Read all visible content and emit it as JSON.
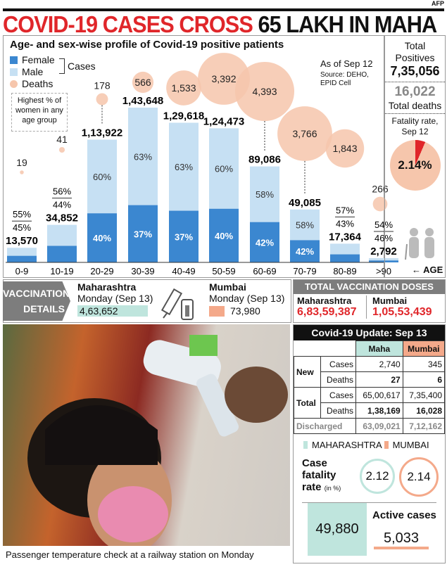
{
  "credit": "AFP",
  "headline": {
    "red": "COVID-19 CASES CROSS",
    "black": "65 LAKH IN MAHA"
  },
  "legend": {
    "female": "Female",
    "male": "Male",
    "deaths": "Deaths",
    "cases": "Cases"
  },
  "note": "Highest % of women in any age group",
  "as_of": "As of Sep 12",
  "source": "Source: DEHO, EPID Cell",
  "age_label": "AGE",
  "chart_data": {
    "type": "bar",
    "title": "Age- and sex-wise profile of Covid-19 positive patients",
    "categories": [
      "0-9",
      "10-19",
      "20-29",
      "30-39",
      "40-49",
      "50-59",
      "60-69",
      "70-79",
      "80-89",
      ">90"
    ],
    "totals": [
      13570,
      34852,
      113922,
      143648,
      129618,
      124473,
      89086,
      49085,
      17364,
      2792
    ],
    "total_labels": [
      "13,570",
      "34,852",
      "1,13,922",
      "1,43,648",
      "1,29,618",
      "1,24,473",
      "89,086",
      "49,085",
      "17,364",
      "2,792"
    ],
    "series": [
      {
        "name": "Female",
        "unit": "%",
        "values": [
          45,
          44,
          40,
          37,
          37,
          40,
          42,
          42,
          43,
          46
        ]
      },
      {
        "name": "Male",
        "unit": "%",
        "values": [
          55,
          56,
          60,
          63,
          63,
          60,
          58,
          58,
          57,
          54
        ]
      }
    ],
    "deaths": [
      19,
      41,
      178,
      566,
      1533,
      3392,
      4393,
      3766,
      1843,
      266
    ],
    "death_labels": [
      "19",
      "41",
      "178",
      "566",
      "1,533",
      "3,392",
      "4,393",
      "3,766",
      "1,843",
      "266"
    ],
    "highlight": [
      2,
      6,
      7
    ],
    "colors": {
      "female": "#3b87d0",
      "male": "#c6e0f3",
      "deaths": "#f6c6ac"
    }
  },
  "side": {
    "total_positives_label": "Total Positives",
    "total_positives": "7,35,056",
    "total_deaths": "16,022",
    "total_deaths_label": "Total deaths",
    "fatality_label": "Fatality rate, Sep 12",
    "fatality_rate": "2.14%",
    "fatality_value": 2.14
  },
  "vaccination": {
    "tag_line1": "VACCINATION",
    "tag_line2": "DETAILS",
    "maha_label": "Maharashtra",
    "maha_date": "Monday (Sep 13)",
    "maha_value": "4,63,652",
    "mumbai_label": "Mumbai",
    "mumbai_date": "Monday (Sep 13)",
    "mumbai_value": "73,980"
  },
  "total_doses": {
    "title": "TOTAL VACCINATION DOSES",
    "maha_label": "Maharashtra",
    "maha_value": "6,83,59,387",
    "mumbai_label": "Mumbai",
    "mumbai_value": "1,05,53,439"
  },
  "update": {
    "title": "Covid-19 Update: Sep 13",
    "col_maha": "Maha",
    "col_mumbai": "Mumbai",
    "new_label": "New",
    "total_label": "Total",
    "cases": "Cases",
    "deaths": "Deaths",
    "discharged": "Discharged",
    "new_cases": [
      "2,740",
      "345"
    ],
    "new_deaths": [
      "27",
      "6"
    ],
    "total_cases": [
      "65,00,617",
      "7,35,400"
    ],
    "total_deaths": [
      "1,38,169",
      "16,028"
    ],
    "discharged_vals": [
      "63,09,021",
      "7,12,162"
    ],
    "legend_maha": "MAHARASHTRA",
    "legend_mumbai": "MUMBAI",
    "cfr_l1": "Case",
    "cfr_l2": "fatality",
    "cfr_l3": "rate",
    "cfr_unit": "(in %)",
    "cfr_maha": "2.12",
    "cfr_mumbai": "2.14",
    "active_label": "Active cases",
    "active_maha": "49,880",
    "active_mumbai": "5,033"
  },
  "caption": "Passenger temperature check at a railway station on Monday"
}
